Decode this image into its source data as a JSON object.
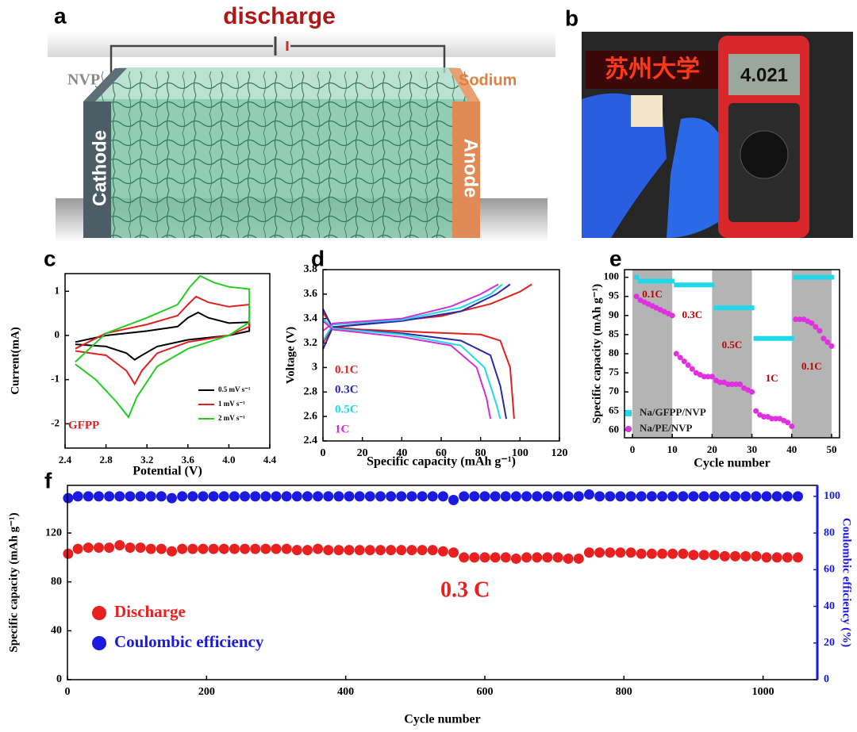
{
  "panel_a": {
    "label": "a",
    "title": "discharge",
    "left_material": "NVP",
    "right_material": "Sodium",
    "left_electrode": "Cathode",
    "right_electrode": "Anode"
  },
  "panel_b": {
    "label": "b",
    "display_text": "苏州大学",
    "meter_reading": "4.021"
  },
  "chart_data": [
    {
      "panel_label": "c",
      "type": "line",
      "xlabel": "Potential (V)",
      "ylabel": "Current(mA)",
      "annotation": "GFPP",
      "legend": "lower right",
      "xlim": [
        2.4,
        4.4
      ],
      "xticks": [
        2.4,
        2.8,
        3.2,
        3.6,
        {
          "value": 4,
          "label": "4.0"
        },
        4.4
      ],
      "ylim": [
        -2.55,
        1.4
      ],
      "yticks": [
        -2,
        -1,
        0,
        1
      ],
      "series": [
        {
          "name": "0.5 mV s⁻¹",
          "color": "#000000",
          "x": [
            2.5,
            2.8,
            3.2,
            3.5,
            3.6,
            3.7,
            3.8,
            4.0,
            4.2,
            4.2,
            4.0,
            3.6,
            3.3,
            3.15,
            3.08,
            3.0,
            2.8,
            2.5
          ],
          "values": [
            -0.15,
            0.0,
            0.1,
            0.2,
            0.4,
            0.52,
            0.4,
            0.28,
            0.3,
            0.1,
            0.0,
            -0.1,
            -0.25,
            -0.45,
            -0.55,
            -0.4,
            -0.25,
            -0.2
          ]
        },
        {
          "name": "1 mV s⁻¹",
          "color": "#e02020",
          "x": [
            2.5,
            2.8,
            3.2,
            3.5,
            3.6,
            3.68,
            3.8,
            4.0,
            4.2,
            4.2,
            4.0,
            3.6,
            3.3,
            3.15,
            3.08,
            3.0,
            2.8,
            2.5
          ],
          "values": [
            -0.3,
            0.05,
            0.25,
            0.45,
            0.7,
            0.88,
            0.75,
            0.65,
            0.7,
            0.2,
            0.0,
            -0.15,
            -0.4,
            -0.8,
            -1.1,
            -0.8,
            -0.45,
            -0.35
          ]
        },
        {
          "name": "2 mV s⁻¹",
          "color": "#22cc22",
          "x": [
            2.5,
            2.8,
            3.2,
            3.5,
            3.62,
            3.72,
            3.85,
            4.0,
            4.2,
            4.2,
            4.0,
            3.6,
            3.3,
            3.1,
            3.02,
            2.9,
            2.7,
            2.5
          ],
          "values": [
            -0.6,
            0.05,
            0.4,
            0.7,
            1.1,
            1.35,
            1.2,
            1.1,
            1.05,
            0.3,
            0.0,
            -0.3,
            -0.7,
            -1.4,
            -1.85,
            -1.5,
            -1.0,
            -0.65
          ]
        }
      ]
    },
    {
      "panel_label": "d",
      "type": "line",
      "xlabel": "Specific capacity (mAh g⁻¹)",
      "ylabel": "Voltage (V)",
      "legend": "lower left",
      "xlim": [
        0,
        120
      ],
      "xticks": [
        0,
        20,
        40,
        60,
        80,
        100,
        120
      ],
      "ylim": [
        2.4,
        3.8
      ],
      "yticks": [
        2.4,
        2.6,
        2.8,
        3,
        3.2,
        3.4,
        3.6,
        3.8
      ],
      "series": [
        {
          "name": "0.1C",
          "color": "#e02020",
          "discharge": {
            "x": [
              0,
              5,
              20,
              50,
              80,
              90,
              95,
              97
            ],
            "values": [
              3.45,
              3.33,
              3.31,
              3.29,
              3.27,
              3.22,
              3.0,
              2.58
            ]
          },
          "charge": {
            "x": [
              0,
              5,
              30,
              60,
              85,
              100,
              106
            ],
            "values": [
              3.2,
              3.33,
              3.37,
              3.42,
              3.52,
              3.62,
              3.68
            ]
          }
        },
        {
          "name": "0.3C",
          "color": "#2a2aa8",
          "discharge": {
            "x": [
              0,
              5,
              40,
              70,
              85,
              90,
              93
            ],
            "values": [
              3.48,
              3.32,
              3.28,
              3.22,
              3.1,
              2.85,
              2.58
            ]
          },
          "charge": {
            "x": [
              0,
              5,
              40,
              70,
              88,
              95
            ],
            "values": [
              3.15,
              3.33,
              3.38,
              3.46,
              3.6,
              3.68
            ]
          }
        },
        {
          "name": "0.5C",
          "color": "#22d8e8",
          "discharge": {
            "x": [
              0,
              5,
              40,
              70,
              82,
              88,
              90
            ],
            "values": [
              3.4,
              3.32,
              3.27,
              3.18,
              3.0,
              2.7,
              2.58
            ]
          },
          "charge": {
            "x": [
              0,
              5,
              40,
              70,
              85,
              91
            ],
            "values": [
              3.22,
              3.35,
              3.39,
              3.49,
              3.6,
              3.68
            ]
          }
        },
        {
          "name": "1C",
          "color": "#d030d0",
          "discharge": {
            "x": [
              0,
              5,
              40,
              65,
              78,
              83,
              85
            ],
            "values": [
              3.38,
              3.31,
              3.25,
              3.18,
              3.0,
              2.75,
              2.58
            ]
          },
          "charge": {
            "x": [
              0,
              5,
              40,
              65,
              80,
              89
            ],
            "values": [
              3.3,
              3.36,
              3.4,
              3.5,
              3.6,
              3.68
            ]
          }
        }
      ]
    },
    {
      "panel_label": "e",
      "type": "scatter",
      "xlabel": "Cycle number",
      "ylabel": "Specific capacity (mAh g⁻¹)",
      "legend": "lower left",
      "shaded": true,
      "rate_labels": [
        "0.1C",
        "0.3C",
        "0.5C",
        "1C",
        "0.1C"
      ],
      "xlim": [
        -2,
        52
      ],
      "xticks": [
        0,
        10,
        20,
        30,
        40,
        50
      ],
      "ylim": [
        58,
        102
      ],
      "yticks": [
        60,
        65,
        70,
        75,
        80,
        85,
        90,
        95,
        100
      ],
      "series": [
        {
          "name": "Na/GFPP/NVP",
          "color": "#22d8e8",
          "marker": "square",
          "x": [
            1,
            2,
            3,
            4,
            5,
            6,
            7,
            8,
            9,
            10,
            11,
            12,
            13,
            14,
            15,
            16,
            17,
            18,
            19,
            20,
            21,
            22,
            23,
            24,
            25,
            26,
            27,
            28,
            29,
            30,
            31,
            32,
            33,
            34,
            35,
            36,
            37,
            38,
            39,
            40,
            41,
            42,
            43,
            44,
            45,
            46,
            47,
            48,
            49,
            50
          ],
          "values": [
            100,
            99,
            99,
            99,
            99,
            99,
            99,
            99,
            99,
            99,
            98,
            98,
            98,
            98,
            98,
            98,
            98,
            98,
            98,
            98,
            92,
            92,
            92,
            92,
            92,
            92,
            92,
            92,
            92,
            92,
            84,
            84,
            84,
            84,
            84,
            84,
            84,
            84,
            84,
            84,
            100,
            100,
            100,
            100,
            100,
            100,
            100,
            100,
            100,
            100
          ]
        },
        {
          "name": "Na/PE/NVP",
          "color": "#e030e0",
          "marker": "circle",
          "x": [
            1,
            2,
            3,
            4,
            5,
            6,
            7,
            8,
            9,
            10,
            11,
            12,
            13,
            14,
            15,
            16,
            17,
            18,
            19,
            20,
            21,
            22,
            23,
            24,
            25,
            26,
            27,
            28,
            29,
            30,
            31,
            32,
            33,
            34,
            35,
            36,
            37,
            38,
            39,
            40,
            41,
            42,
            43,
            44,
            45,
            46,
            47,
            48,
            49,
            50
          ],
          "values": [
            95,
            94,
            93.5,
            93,
            92.5,
            92,
            91.5,
            91,
            90.5,
            90,
            80,
            79,
            78,
            77,
            76,
            75,
            74.5,
            74,
            74,
            74,
            73,
            72.5,
            72.5,
            72,
            72,
            72,
            72,
            71,
            70.5,
            70,
            65,
            64,
            63.5,
            63.5,
            63,
            63,
            63,
            62.5,
            62,
            61,
            89,
            89,
            89,
            88.5,
            88,
            87,
            86,
            84,
            83,
            82
          ]
        }
      ]
    },
    {
      "panel_label": "f",
      "type": "scatter",
      "xlabel": "Cycle number",
      "ylabel": "Specific capacity (mAh g⁻¹)",
      "y2label": "Coulombic efficiency (%)",
      "annotation": "0.3 C",
      "legend": "lower left",
      "xlim": [
        0,
        1078
      ],
      "xticks": [
        0,
        200,
        400,
        600,
        800,
        1000
      ],
      "ylim": [
        0,
        159
      ],
      "yticks": [
        0,
        40,
        80,
        120
      ],
      "y2lim": [
        0,
        106
      ],
      "y2ticks": [
        0,
        20,
        40,
        60,
        80,
        100
      ],
      "series": [
        {
          "name": "Discharge",
          "color": "#e82020",
          "marker": "circle",
          "x": [
            1,
            15,
            30,
            45,
            60,
            75,
            90,
            105,
            120,
            135,
            150,
            165,
            180,
            195,
            210,
            225,
            240,
            255,
            270,
            285,
            300,
            315,
            330,
            345,
            360,
            375,
            390,
            405,
            420,
            435,
            450,
            465,
            480,
            495,
            510,
            525,
            540,
            555,
            570,
            585,
            600,
            615,
            630,
            645,
            660,
            675,
            690,
            705,
            720,
            735,
            750,
            765,
            780,
            795,
            810,
            825,
            840,
            855,
            870,
            885,
            900,
            915,
            930,
            945,
            960,
            975,
            990,
            1005,
            1020,
            1035,
            1050
          ],
          "values": [
            103,
            107,
            108,
            108,
            108,
            110,
            108,
            108,
            107,
            107,
            105,
            107,
            107,
            107,
            107,
            107,
            107,
            107,
            107,
            107,
            107,
            107,
            106,
            106,
            107,
            106,
            106,
            106,
            106,
            106,
            106,
            106,
            106,
            106,
            106,
            106,
            105,
            104,
            100,
            100,
            100,
            100,
            100,
            99,
            100,
            100,
            100,
            100,
            99,
            99,
            104,
            104,
            104,
            104,
            104,
            103,
            103,
            103,
            103,
            103,
            102,
            102,
            102,
            101,
            101,
            101,
            101,
            100,
            100,
            100,
            100
          ]
        },
        {
          "name": "Coulombic efficiency",
          "color": "#1a1ae0",
          "marker": "circle",
          "axis": "y2",
          "x": [
            1,
            15,
            30,
            45,
            60,
            75,
            90,
            105,
            120,
            135,
            150,
            165,
            180,
            195,
            210,
            225,
            240,
            255,
            270,
            285,
            300,
            315,
            330,
            345,
            360,
            375,
            390,
            405,
            420,
            435,
            450,
            465,
            480,
            495,
            510,
            525,
            540,
            555,
            570,
            585,
            600,
            615,
            630,
            645,
            660,
            675,
            690,
            705,
            720,
            735,
            750,
            765,
            780,
            795,
            810,
            825,
            840,
            855,
            870,
            885,
            900,
            915,
            930,
            945,
            960,
            975,
            990,
            1005,
            1020,
            1035,
            1050
          ],
          "values": [
            99,
            100,
            100,
            100,
            100,
            100,
            100,
            100,
            100,
            100,
            99,
            100,
            100,
            100,
            100,
            100,
            100,
            100,
            100,
            100,
            100,
            100,
            100,
            100,
            100,
            100,
            100,
            100,
            100,
            100,
            100,
            100,
            100,
            100,
            100,
            100,
            100,
            98,
            100,
            100,
            100,
            100,
            100,
            100,
            100,
            100,
            100,
            100,
            100,
            100,
            101,
            100,
            100,
            100,
            100,
            100,
            100,
            100,
            100,
            100,
            100,
            100,
            100,
            100,
            100,
            100,
            100,
            100,
            100,
            100,
            100
          ]
        }
      ]
    }
  ]
}
